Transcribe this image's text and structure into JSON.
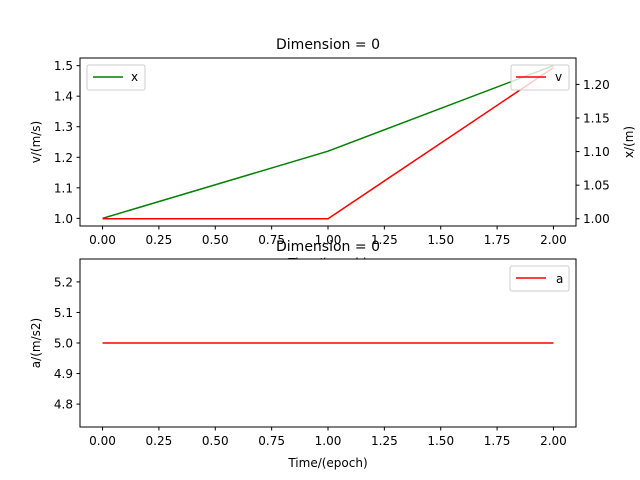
{
  "chart_data": [
    {
      "type": "line",
      "title": "Dimension = 0",
      "xlabel": "Time/(epoch)",
      "ylabel_left": "v/(m/s)",
      "ylabel_right": "x/(m)",
      "x": [
        0,
        1,
        2
      ],
      "xlim": [
        -0.1,
        2.1
      ],
      "ylim_left": [
        0.975,
        1.525
      ],
      "ylim_right": [
        0.9892,
        1.2393
      ],
      "xticks": [
        "0.00",
        "0.25",
        "0.50",
        "0.75",
        "1.00",
        "1.25",
        "1.50",
        "1.75",
        "2.00"
      ],
      "yticks_left": [
        "1.0",
        "1.1",
        "1.2",
        "1.3",
        "1.4",
        "1.5"
      ],
      "yticks_right": [
        "1.00",
        "1.05",
        "1.10",
        "1.15",
        "1.20"
      ],
      "series": [
        {
          "name": "x",
          "axis": "left",
          "color": "#008000",
          "values": [
            1.0,
            1.22,
            1.5
          ]
        },
        {
          "name": "v",
          "axis": "right",
          "color": "#ff0000",
          "values": [
            1.0,
            1.0,
            1.225
          ]
        }
      ],
      "legends": [
        {
          "axis": "left",
          "location": "upper-left",
          "entry": "x",
          "color": "#008000"
        },
        {
          "axis": "right",
          "location": "upper-right",
          "entry": "v",
          "color": "#ff0000"
        }
      ],
      "grid": false
    },
    {
      "type": "line",
      "title": "Dimension = 0",
      "xlabel": "Time/(epoch)",
      "ylabel": "a/(m/s2)",
      "x": [
        0,
        1,
        2
      ],
      "xlim": [
        -0.1,
        2.1
      ],
      "ylim": [
        4.725,
        5.275
      ],
      "xticks": [
        "0.00",
        "0.25",
        "0.50",
        "0.75",
        "1.00",
        "1.25",
        "1.50",
        "1.75",
        "2.00"
      ],
      "yticks": [
        "4.8",
        "4.9",
        "5.0",
        "5.1",
        "5.2"
      ],
      "series": [
        {
          "name": "a",
          "color": "#ff0000",
          "values": [
            5.0,
            5.0,
            5.0
          ]
        }
      ],
      "legends": [
        {
          "location": "upper-right",
          "entry": "a",
          "color": "#ff0000"
        }
      ],
      "grid": false
    }
  ]
}
